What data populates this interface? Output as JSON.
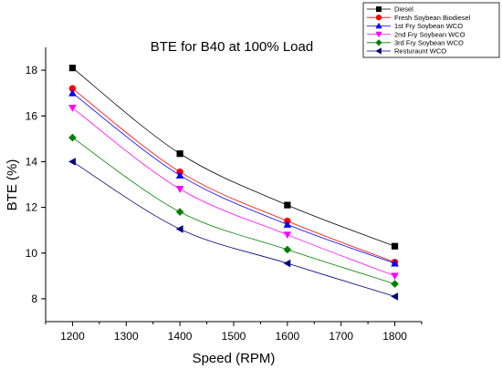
{
  "chart_data": {
    "type": "line",
    "title": "BTE for B40 at 100% Load",
    "xlabel": "Speed (RPM)",
    "ylabel": "BTE (%)",
    "xlim": [
      1150,
      1850
    ],
    "ylim": [
      7,
      19
    ],
    "xticks": [
      1200,
      1300,
      1400,
      1500,
      1600,
      1700,
      1800
    ],
    "yticks": [
      8,
      10,
      12,
      14,
      16,
      18
    ],
    "legend_position": "top-right",
    "grid": false,
    "x": [
      1200,
      1400,
      1600,
      1800
    ],
    "series": [
      {
        "name": "Diesel",
        "values": [
          18.1,
          14.35,
          12.1,
          10.3
        ],
        "color": "#000000",
        "marker": "square"
      },
      {
        "name": "Fresh Soybean Biodiesel",
        "values": [
          17.2,
          13.55,
          11.4,
          9.6
        ],
        "color": "#ff0000",
        "marker": "circle"
      },
      {
        "name": "1st Fry Soybean WCO",
        "values": [
          17.0,
          13.4,
          11.25,
          9.55
        ],
        "color": "#0000ff",
        "marker": "triangle-up"
      },
      {
        "name": "2nd Fry Soybean WCO",
        "values": [
          16.35,
          12.8,
          10.8,
          9.0
        ],
        "color": "#ff00ff",
        "marker": "triangle-down"
      },
      {
        "name": "3rd Fry Soybean WCO",
        "values": [
          15.05,
          11.8,
          10.15,
          8.65
        ],
        "color": "#008000",
        "marker": "diamond"
      },
      {
        "name": "Resturaunt WCO",
        "values": [
          14.0,
          11.05,
          9.55,
          8.1
        ],
        "color": "#000080",
        "marker": "triangle-left"
      }
    ]
  }
}
